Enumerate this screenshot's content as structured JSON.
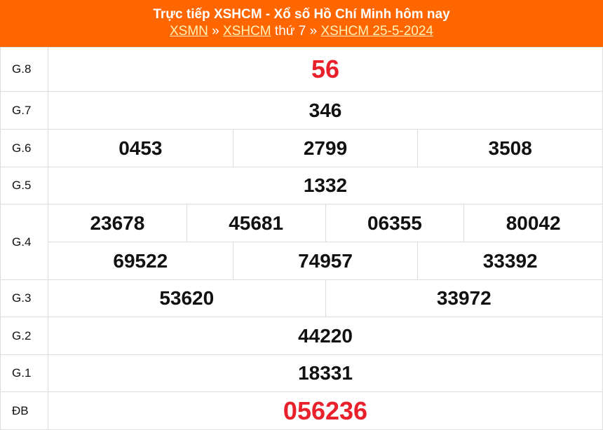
{
  "header": {
    "title": "Trực tiếp XSHCM - Xổ số Hồ Chí Minh hôm nay",
    "crumb1": "XSMN",
    "sep1": " » ",
    "crumb2": "XSHCM",
    "mid": " thứ 7",
    "sep2": " » ",
    "crumb3": "XSHCM 25-5-2024"
  },
  "prizes": [
    {
      "label": "G.8",
      "values": [
        "56"
      ]
    },
    {
      "label": "G.7",
      "values": [
        "346"
      ]
    },
    {
      "label": "G.6",
      "values": [
        "0453",
        "2799",
        "3508"
      ]
    },
    {
      "label": "G.5",
      "values": [
        "1332"
      ]
    },
    {
      "label": "G.4",
      "values": [
        "23678",
        "45681",
        "06355",
        "80042",
        "69522",
        "74957",
        "33392"
      ]
    },
    {
      "label": "G.3",
      "values": [
        "53620",
        "33972"
      ]
    },
    {
      "label": "G.2",
      "values": [
        "44220"
      ]
    },
    {
      "label": "G.1",
      "values": [
        "18331"
      ]
    },
    {
      "label": "ĐB",
      "values": [
        "056236"
      ]
    }
  ],
  "colors": {
    "header": "#ff6600",
    "special": "#e8212b"
  }
}
